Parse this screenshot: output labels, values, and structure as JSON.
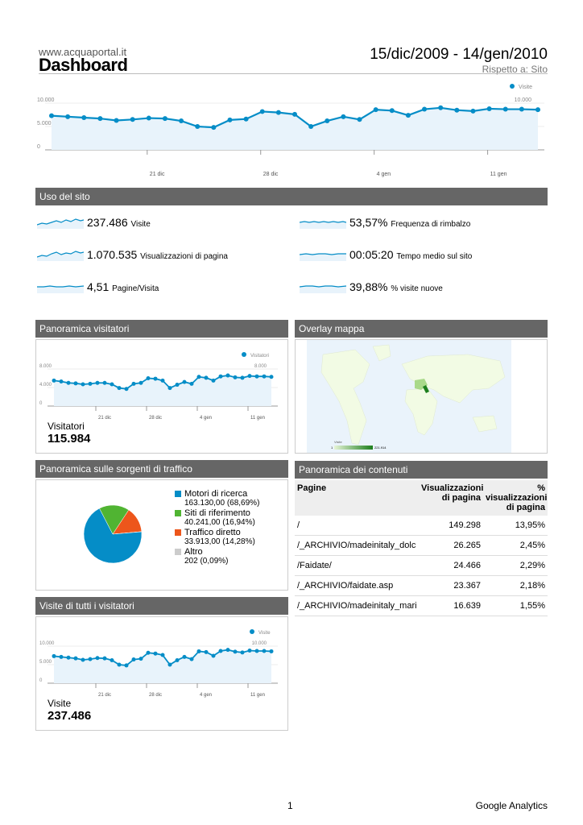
{
  "header": {
    "site": "www.acquaportal.it",
    "title": "Dashboard",
    "date_range": "15/dic/2009 - 14/gen/2010",
    "compare": "Rispetto a: Sito"
  },
  "main_chart": {
    "legend": "Visite",
    "y_left": [
      "10.000",
      "5.000",
      "0"
    ],
    "y_right": [
      "10.000",
      "5.000",
      "0"
    ],
    "x_labels": [
      "21 dic",
      "28 dic",
      "4 gen",
      "11 gen"
    ]
  },
  "site_usage": {
    "title": "Uso del sito",
    "metrics": [
      {
        "value": "237.486",
        "label": "Visite"
      },
      {
        "value": "53,57%",
        "label": "Frequenza di rimbalzo"
      },
      {
        "value": "1.070.535",
        "label": "Visualizzazioni di pagina"
      },
      {
        "value": "00:05:20",
        "label": "Tempo medio sul sito"
      },
      {
        "value": "4,51",
        "label": "Pagine/Visita"
      },
      {
        "value": "39,88%",
        "label": "% visite nuove"
      }
    ]
  },
  "visitors_overview": {
    "title": "Panoramica visitatori",
    "legend": "Visitatori",
    "y_left": [
      "8.000",
      "4.000",
      "0"
    ],
    "y_right": [
      "8.000",
      "4.000",
      "0"
    ],
    "x_labels": [
      "21 dic",
      "28 dic",
      "4 gen",
      "11 gen"
    ],
    "total_label": "Visitatori",
    "total_value": "115.984"
  },
  "map_overlay": {
    "title": "Overlay mappa",
    "legend_label": "Visite",
    "legend_min": "1",
    "legend_max": "221.914"
  },
  "traffic_sources": {
    "title": "Panoramica sulle sorgenti di traffico",
    "items": [
      {
        "name": "Motori di ricerca",
        "detail": "163.130,00 (68,69%)",
        "color": "#058dc7",
        "value": 68.69
      },
      {
        "name": "Siti di riferimento",
        "detail": "40.241,00 (16,94%)",
        "color": "#50b432",
        "value": 16.94
      },
      {
        "name": "Traffico diretto",
        "detail": "33.913,00 (14,28%)",
        "color": "#ed561b",
        "value": 14.28
      },
      {
        "name": "Altro",
        "detail": "202 (0,09%)",
        "color": "#cccccc",
        "value": 0.09
      }
    ]
  },
  "content_overview": {
    "title": "Panoramica dei contenuti",
    "headers": {
      "pages": "Pagine",
      "views": "Visualizzazioni di pagina",
      "pct": "% visualizzazioni di pagina"
    },
    "rows": [
      {
        "page": "/",
        "views": "149.298",
        "pct": "13,95%"
      },
      {
        "page": "/_ARCHIVIO/madeinitaly_dolc",
        "views": "26.265",
        "pct": "2,45%"
      },
      {
        "page": "/Faidate/",
        "views": "24.466",
        "pct": "2,29%"
      },
      {
        "page": "/_ARCHIVIO/faidate.asp",
        "views": "23.367",
        "pct": "2,18%"
      },
      {
        "page": "/_ARCHIVIO/madeinitaly_mari",
        "views": "16.639",
        "pct": "1,55%"
      }
    ]
  },
  "all_visits": {
    "title": "Visite di tutti i visitatori",
    "legend": "Visite",
    "y_left": [
      "10.000",
      "5.000",
      "0"
    ],
    "y_right": [
      "10.000",
      "5.000",
      "0"
    ],
    "x_labels": [
      "21 dic",
      "28 dic",
      "4 gen",
      "11 gen"
    ],
    "total_label": "Visite",
    "total_value": "237.486"
  },
  "footer": {
    "page_number": "1",
    "brand": "Google Analytics"
  },
  "chart_data": [
    {
      "type": "line",
      "series": [
        {
          "name": "Visite",
          "values": [
            7300,
            7100,
            6900,
            6700,
            6300,
            6500,
            6800,
            6700,
            6200,
            5000,
            4800,
            6400,
            6600,
            8200,
            8000,
            7600,
            5000,
            6200,
            7100,
            6500,
            8600,
            8400,
            7400,
            8700,
            9000,
            8500,
            8300,
            8800,
            8700,
            8700,
            8600
          ]
        }
      ],
      "x_tick_labels": [
        "21 dic",
        "28 dic",
        "4 gen",
        "11 gen"
      ],
      "ylim": [
        0,
        10000
      ]
    },
    {
      "type": "line",
      "series": [
        {
          "name": "Visitatori",
          "values": [
            5500,
            5300,
            5000,
            4900,
            4700,
            4800,
            5000,
            5000,
            4700,
            3900,
            3700,
            4800,
            5000,
            6000,
            5900,
            5500,
            3900,
            4600,
            5200,
            4800,
            6300,
            6100,
            5500,
            6400,
            6600,
            6200,
            6100,
            6500,
            6400,
            6400,
            6300
          ]
        }
      ],
      "x_tick_labels": [
        "21 dic",
        "28 dic",
        "4 gen",
        "11 gen"
      ],
      "ylim": [
        0,
        8000
      ]
    },
    {
      "type": "pie",
      "categories": [
        "Motori di ricerca",
        "Siti di riferimento",
        "Traffico diretto",
        "Altro"
      ],
      "values": [
        68.69,
        16.94,
        14.28,
        0.09
      ]
    },
    {
      "type": "line",
      "series": [
        {
          "name": "Visite",
          "values": [
            7300,
            7100,
            6900,
            6700,
            6300,
            6500,
            6800,
            6700,
            6200,
            5000,
            4800,
            6400,
            6600,
            8200,
            8000,
            7600,
            5000,
            6200,
            7100,
            6500,
            8600,
            8400,
            7400,
            8700,
            9000,
            8500,
            8300,
            8800,
            8700,
            8700,
            8600
          ]
        }
      ],
      "x_tick_labels": [
        "21 dic",
        "28 dic",
        "4 gen",
        "11 gen"
      ],
      "ylim": [
        0,
        10000
      ]
    }
  ]
}
